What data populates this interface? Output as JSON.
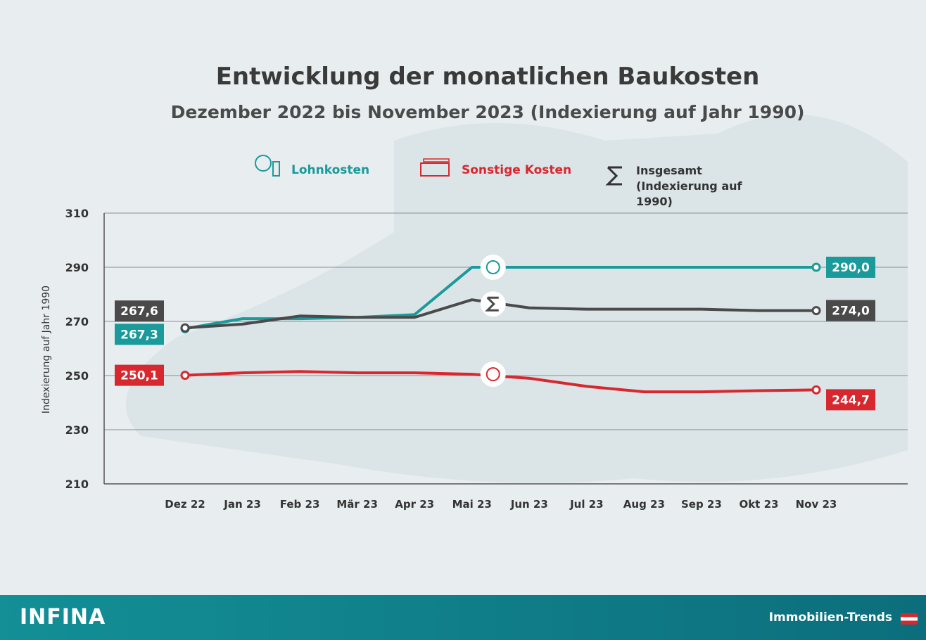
{
  "chart_data": {
    "type": "line",
    "title": "Entwicklung der monatlichen Baukosten",
    "subtitle": "Dezember 2022 bis November 2023 (Indexierung auf Jahr 1990)",
    "y_label": "Indexierung auf Jahr 1990",
    "categories": [
      "Dez 22",
      "Jan 23",
      "Feb 23",
      "Mär 23",
      "Apr 23",
      "Mai 23",
      "Jun 23",
      "Jul 23",
      "Aug 23",
      "Sep 23",
      "Okt 23",
      "Nov 23"
    ],
    "series": [
      {
        "name": "Lohnkosten",
        "color": "#1a9a9a",
        "values": [
          267.3,
          271,
          271,
          271.5,
          272.5,
          290,
          290,
          290,
          290,
          290,
          290,
          290.0
        ],
        "value_labels": [
          "267,3",
          null,
          null,
          null,
          null,
          null,
          null,
          null,
          null,
          null,
          null,
          "290,0"
        ]
      },
      {
        "name": "Sonstige Kosten",
        "color": "#d7282f",
        "values": [
          250.1,
          251,
          251.5,
          251,
          251,
          250.5,
          249,
          246,
          244,
          244,
          244.4,
          244.7
        ],
        "value_labels": [
          "250,1",
          null,
          null,
          null,
          null,
          null,
          null,
          null,
          null,
          null,
          null,
          "244,7"
        ]
      },
      {
        "name": "Insgesamt (Indexierung auf 1990)",
        "color": "#4a4a4a",
        "values": [
          267.6,
          269,
          272,
          271.5,
          271.5,
          278,
          275,
          274.5,
          274.5,
          274.5,
          274,
          274.0
        ],
        "value_labels": [
          "267,6",
          null,
          null,
          null,
          null,
          null,
          null,
          null,
          null,
          null,
          null,
          "274,0"
        ]
      }
    ],
    "ylim": [
      210,
      310
    ],
    "yticks": [
      210,
      230,
      250,
      270,
      290,
      310
    ],
    "grid": true,
    "footer_left": "INFINA",
    "footer_right": "Immobilien-Trends"
  }
}
